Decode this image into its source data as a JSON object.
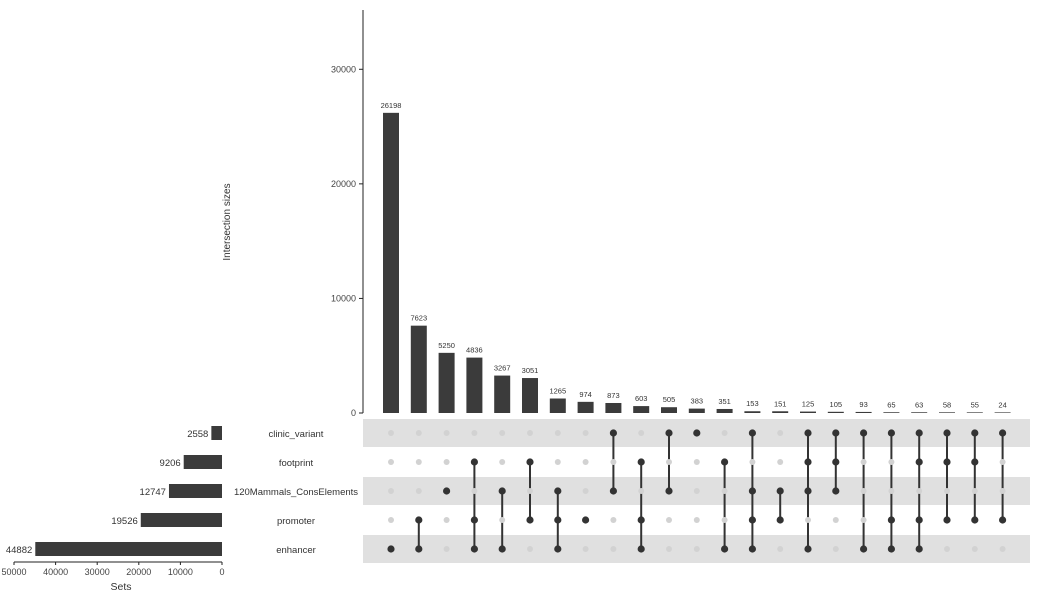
{
  "chart_data": {
    "type": "upset",
    "title": "",
    "intersection_axis": {
      "label": "Intersection sizes",
      "ylim": [
        0,
        35000
      ],
      "ticks": [
        0,
        10000,
        20000,
        30000
      ],
      "tick_labels": [
        "0",
        "10000",
        "20000",
        "30000"
      ]
    },
    "set_axis": {
      "label": "Sets",
      "xlim": [
        50000,
        0
      ],
      "ticks": [
        50000,
        40000,
        30000,
        20000,
        10000,
        0
      ],
      "tick_labels": [
        "50000",
        "40000",
        "30000",
        "20000",
        "10000",
        "0"
      ]
    },
    "sets": [
      {
        "name": "clinic_variant",
        "size": 2558,
        "size_label": "2558",
        "label": "clinic_variant"
      },
      {
        "name": "footprint",
        "size": 9206,
        "size_label": "9206",
        "label": "footprint"
      },
      {
        "name": "120Mammals_ConsElements",
        "size": 12747,
        "size_label": "12747",
        "label": "120Mammals_ConsElements"
      },
      {
        "name": "promoter",
        "size": 19526,
        "size_label": "19526",
        "label": "promoter"
      },
      {
        "name": "enhancer",
        "size": 44882,
        "size_label": "44882",
        "label": "enhancer"
      }
    ],
    "intersections": [
      {
        "size": 26198,
        "label": "26198",
        "members": [
          4
        ]
      },
      {
        "size": 7623,
        "label": "7623",
        "members": [
          3,
          4
        ]
      },
      {
        "size": 5250,
        "label": "5250",
        "members": [
          2
        ]
      },
      {
        "size": 4836,
        "label": "4836",
        "members": [
          1,
          3,
          4
        ]
      },
      {
        "size": 3267,
        "label": "3267",
        "members": [
          2,
          4
        ]
      },
      {
        "size": 3051,
        "label": "3051",
        "members": [
          1,
          3
        ]
      },
      {
        "size": 1265,
        "label": "1265",
        "members": [
          2,
          3,
          4
        ]
      },
      {
        "size": 974,
        "label": "974",
        "members": [
          3
        ]
      },
      {
        "size": 873,
        "label": "873",
        "members": [
          0,
          2
        ]
      },
      {
        "size": 603,
        "label": "603",
        "members": [
          1,
          3,
          4
        ]
      },
      {
        "size": 505,
        "label": "505",
        "members": [
          0,
          2
        ]
      },
      {
        "size": 383,
        "label": "383",
        "members": [
          0
        ]
      },
      {
        "size": 351,
        "label": "351",
        "members": [
          1,
          4
        ]
      },
      {
        "size": 153,
        "label": "153",
        "members": [
          0,
          2,
          3,
          4
        ]
      },
      {
        "size": 151,
        "label": "151",
        "members": [
          2,
          3
        ]
      },
      {
        "size": 125,
        "label": "125",
        "members": [
          0,
          1,
          2,
          4
        ]
      },
      {
        "size": 105,
        "label": "105",
        "members": [
          0,
          1,
          2
        ]
      },
      {
        "size": 93,
        "label": "93",
        "members": [
          0,
          4
        ]
      },
      {
        "size": 65,
        "label": "65",
        "members": [
          0,
          3,
          4
        ]
      },
      {
        "size": 63,
        "label": "63",
        "members": [
          0,
          1,
          3,
          4
        ]
      },
      {
        "size": 58,
        "label": "58",
        "members": [
          0,
          1,
          3
        ]
      },
      {
        "size": 55,
        "label": "55",
        "members": [
          0,
          1,
          3
        ]
      },
      {
        "size": 24,
        "label": "24",
        "members": [
          0,
          3
        ]
      }
    ],
    "colors": {
      "bar": "#3b3b3b",
      "dot_active": "#333333",
      "dot_inactive": "#d2d2d2",
      "stripe": "#e0e0e0",
      "axis": "#222222"
    }
  }
}
